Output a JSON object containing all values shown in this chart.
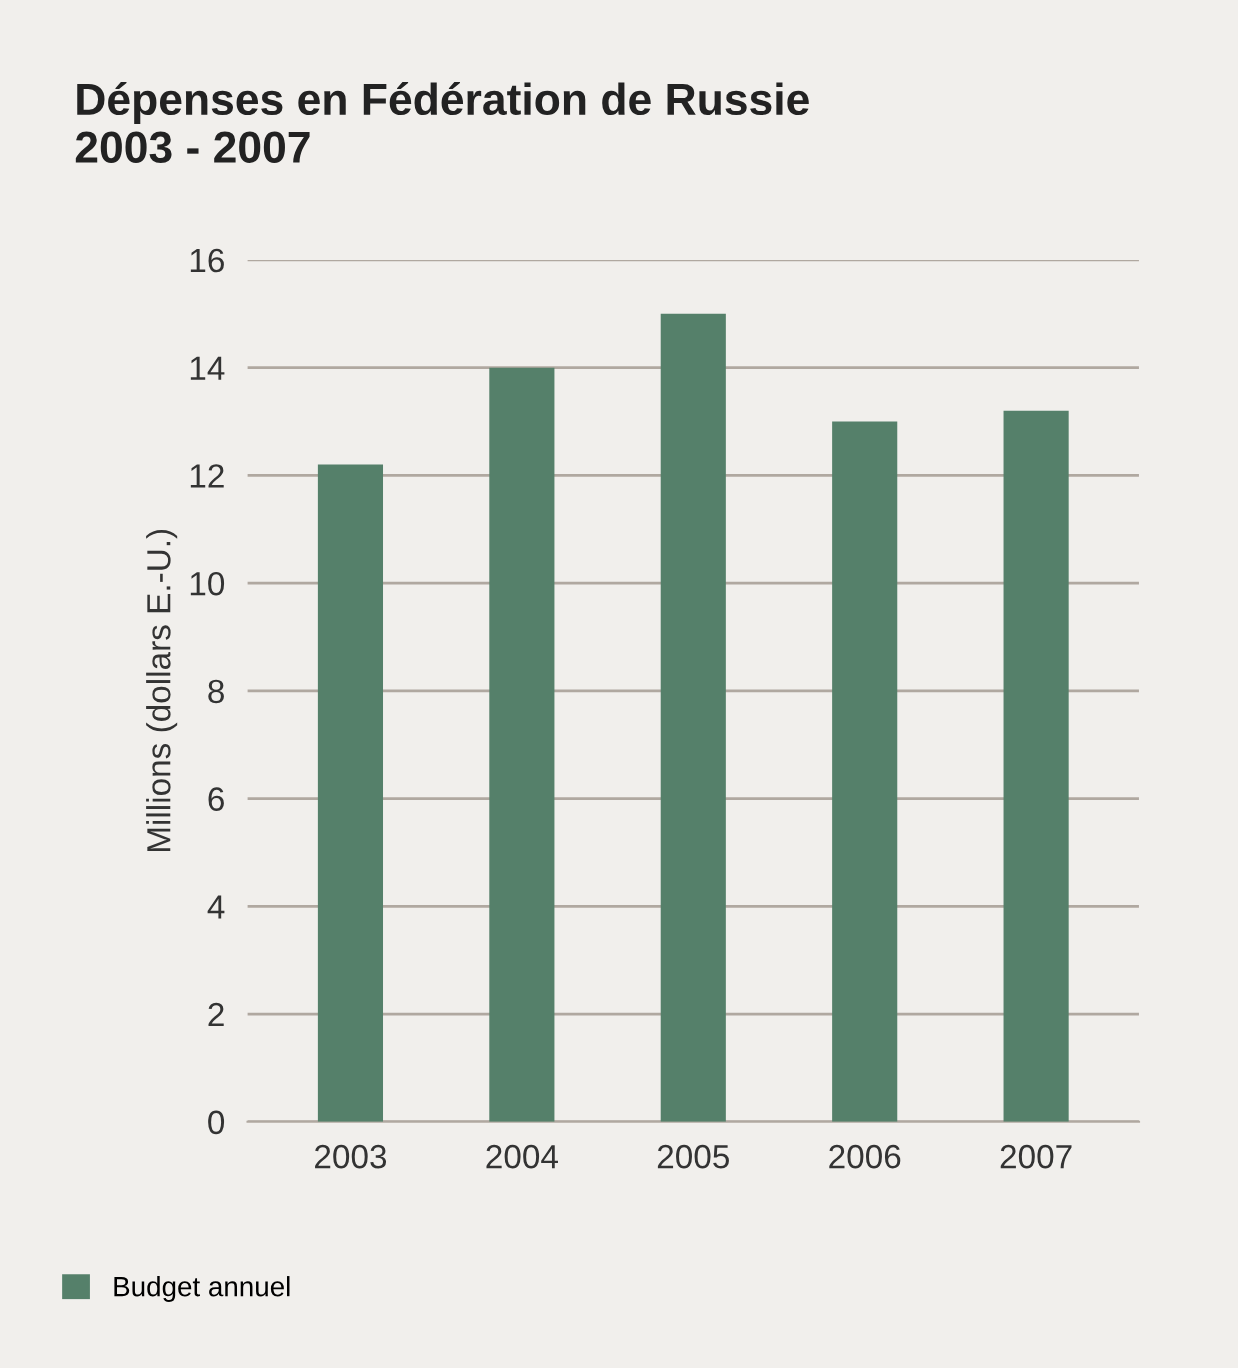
{
  "chart_data": {
    "type": "bar",
    "title": "Dépenses en Fédération de Russie\n2003 - 2007",
    "ylabel": "Millions (dollars E.-U.)",
    "categories": [
      "2003",
      "2004",
      "2005",
      "2006",
      "2007"
    ],
    "series": [
      {
        "name": "Budget annuel",
        "color": "#55806a",
        "values": [
          12.2,
          14.0,
          15.0,
          13.0,
          13.2
        ]
      }
    ],
    "ylim": [
      0,
      16
    ],
    "yticks": [
      0,
      2,
      4,
      6,
      8,
      10,
      12,
      14,
      16
    ],
    "grid": "y",
    "legend": "bottom left"
  }
}
